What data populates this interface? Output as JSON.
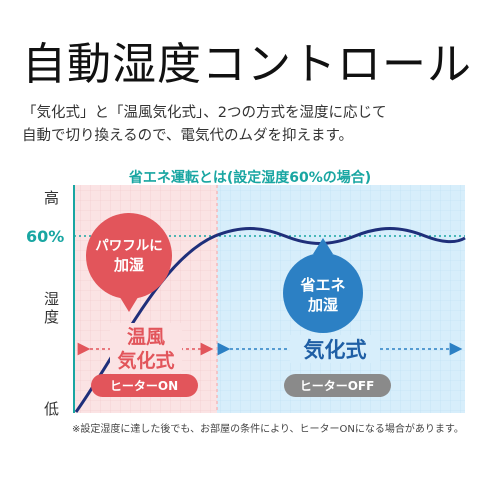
{
  "title": "自動湿度コントロール",
  "description": {
    "line1": "「気化式」と「温風気化式」、2つの方式を湿度に応じて",
    "line2": "自動で切り換えるので、電気代のムダを抑えます。"
  },
  "diagram": {
    "subtitle": "省エネ運転とは(設定湿度60%の場合)",
    "axis": {
      "high": "高",
      "mid_line1": "湿",
      "mid_line2": "度",
      "low": "低",
      "setpoint": "60%"
    },
    "left_zone": {
      "bubble_line1": "パワフルに",
      "bubble_line2": "加湿",
      "mode_line1": "温風",
      "mode_line2": "気化式",
      "heater": "ヒーターON"
    },
    "right_zone": {
      "bubble_line1": "省エネ",
      "bubble_line2": "加湿",
      "mode": "気化式",
      "heater": "ヒーターOFF"
    },
    "colors": {
      "pink_bg": "#fbe3e4",
      "pink_accent": "#e2555b",
      "blue_bg": "#d7eefb",
      "blue_accent": "#2c80c4",
      "curve": "#1f2f7a",
      "teal": "#19a6a2",
      "gray_badge": "#8a8a8a"
    }
  },
  "footnote": "※設定湿度に達した後でも、お部屋の条件により、ヒーターONになる場合があります。"
}
